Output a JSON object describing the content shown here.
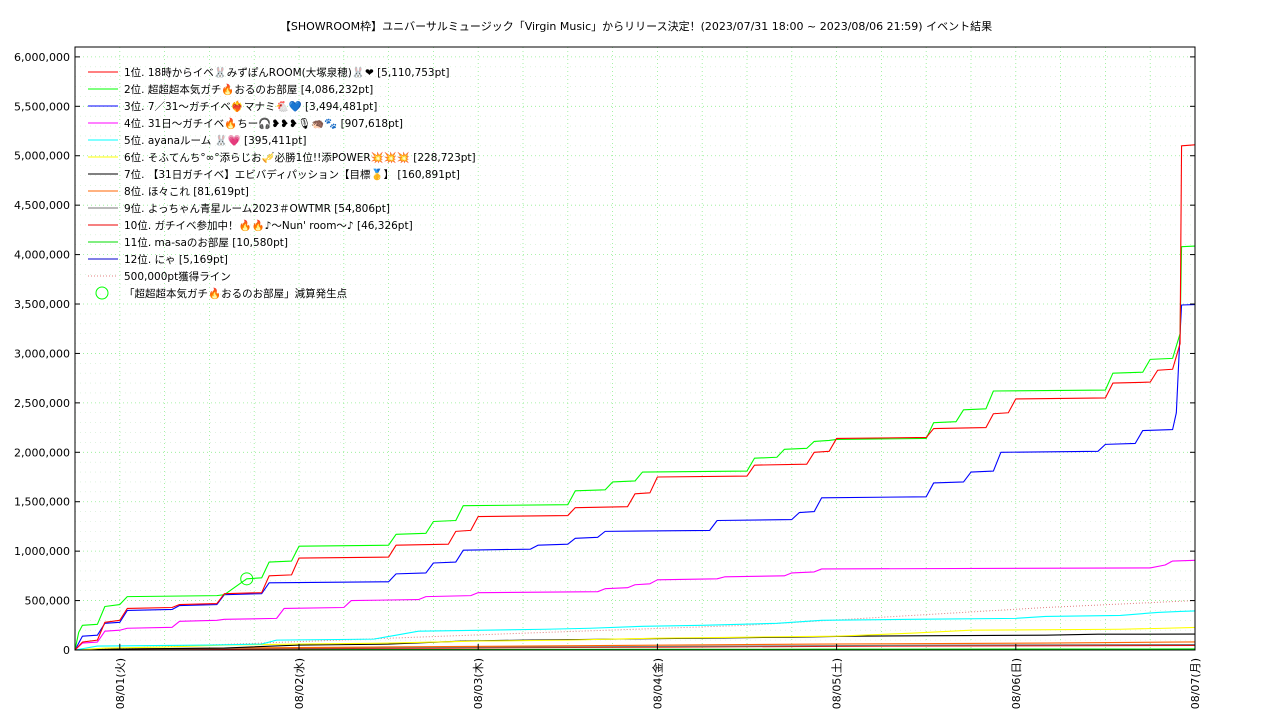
{
  "chart_data": {
    "type": "line",
    "title": "【SHOWROOM枠】ユニバーサルミュージック「Virgin Music」からリリース決定！(2023/07/31 18:00 ~ 2023/08/06 21:59)",
    "title_suffix": "イベント結果",
    "xlabel": "",
    "ylabel": "",
    "x_range_hours": [
      0,
      150
    ],
    "ylim": [
      0,
      6100000
    ],
    "grid": true,
    "legend_position": "top-left",
    "y_ticks": [
      {
        "value": 0,
        "label": "0"
      },
      {
        "value": 500000,
        "label": "500,000"
      },
      {
        "value": 1000000,
        "label": "1,000,000"
      },
      {
        "value": 1500000,
        "label": "1,500,000"
      },
      {
        "value": 2000000,
        "label": "2,000,000"
      },
      {
        "value": 2500000,
        "label": "2,500,000"
      },
      {
        "value": 3000000,
        "label": "3,000,000"
      },
      {
        "value": 3500000,
        "label": "3,500,000"
      },
      {
        "value": 4000000,
        "label": "4,000,000"
      },
      {
        "value": 4500000,
        "label": "4,500,000"
      },
      {
        "value": 5000000,
        "label": "5,000,000"
      },
      {
        "value": 5500000,
        "label": "5,500,000"
      },
      {
        "value": 6000000,
        "label": "6,000,000"
      }
    ],
    "x_ticks": [
      {
        "value": 6,
        "label": "08/01(火)"
      },
      {
        "value": 30,
        "label": "08/02(水)"
      },
      {
        "value": 54,
        "label": "08/03(木)"
      },
      {
        "value": 78,
        "label": "08/04(金)"
      },
      {
        "value": 102,
        "label": "08/05(土)"
      },
      {
        "value": 126,
        "label": "08/06(日)"
      },
      {
        "value": 150,
        "label": "08/07(月)"
      }
    ],
    "series": [
      {
        "name": "1位. 18時からイベ🐰みずぽんROOM(大塚泉穂)🐰❤ [5,110,753pt]",
        "color": "#ff0000",
        "points": [
          [
            0,
            0
          ],
          [
            1,
            80000
          ],
          [
            3,
            100000
          ],
          [
            4,
            280000
          ],
          [
            6,
            300000
          ],
          [
            7,
            420000
          ],
          [
            13,
            430000
          ],
          [
            14,
            460000
          ],
          [
            19,
            470000
          ],
          [
            20,
            570000
          ],
          [
            25,
            580000
          ],
          [
            26,
            750000
          ],
          [
            29,
            760000
          ],
          [
            30,
            930000
          ],
          [
            42,
            940000
          ],
          [
            43,
            1060000
          ],
          [
            50,
            1070000
          ],
          [
            51,
            1200000
          ],
          [
            53,
            1210000
          ],
          [
            54,
            1350000
          ],
          [
            66,
            1360000
          ],
          [
            67,
            1440000
          ],
          [
            74,
            1450000
          ],
          [
            75,
            1580000
          ],
          [
            77,
            1590000
          ],
          [
            78,
            1750000
          ],
          [
            90,
            1760000
          ],
          [
            91,
            1870000
          ],
          [
            98,
            1880000
          ],
          [
            99,
            2000000
          ],
          [
            101,
            2010000
          ],
          [
            102,
            2140000
          ],
          [
            114,
            2150000
          ],
          [
            115,
            2240000
          ],
          [
            122,
            2250000
          ],
          [
            123,
            2390000
          ],
          [
            125,
            2400000
          ],
          [
            126,
            2540000
          ],
          [
            138,
            2550000
          ],
          [
            139,
            2700000
          ],
          [
            144,
            2710000
          ],
          [
            145,
            2830000
          ],
          [
            147,
            2840000
          ],
          [
            148,
            3100000
          ],
          [
            148.2,
            5100000
          ],
          [
            150,
            5110753
          ]
        ]
      },
      {
        "name": "2位. 超超超本気ガチ🔥おるのお部屋 [4,086,232pt]",
        "color": "#00ff00",
        "points": [
          [
            0,
            0
          ],
          [
            0.5,
            180000
          ],
          [
            1,
            250000
          ],
          [
            3,
            260000
          ],
          [
            4,
            440000
          ],
          [
            6,
            460000
          ],
          [
            7,
            540000
          ],
          [
            19,
            550000
          ],
          [
            20,
            560000
          ],
          [
            23,
            720000
          ],
          [
            25,
            730000
          ],
          [
            26,
            890000
          ],
          [
            29,
            900000
          ],
          [
            30,
            1050000
          ],
          [
            42,
            1060000
          ],
          [
            43,
            1170000
          ],
          [
            47,
            1180000
          ],
          [
            48,
            1300000
          ],
          [
            51,
            1310000
          ],
          [
            52,
            1460000
          ],
          [
            66,
            1470000
          ],
          [
            67,
            1610000
          ],
          [
            71,
            1620000
          ],
          [
            72,
            1700000
          ],
          [
            75,
            1710000
          ],
          [
            76,
            1800000
          ],
          [
            90,
            1810000
          ],
          [
            91,
            1940000
          ],
          [
            94,
            1950000
          ],
          [
            95,
            2030000
          ],
          [
            98,
            2040000
          ],
          [
            99,
            2110000
          ],
          [
            101,
            2120000
          ],
          [
            102,
            2130000
          ],
          [
            114,
            2140000
          ],
          [
            115,
            2300000
          ],
          [
            118,
            2310000
          ],
          [
            119,
            2430000
          ],
          [
            122,
            2440000
          ],
          [
            123,
            2620000
          ],
          [
            138,
            2630000
          ],
          [
            139,
            2800000
          ],
          [
            143,
            2810000
          ],
          [
            144,
            2940000
          ],
          [
            147,
            2950000
          ],
          [
            148,
            3200000
          ],
          [
            148.2,
            4080000
          ],
          [
            150,
            4086232
          ]
        ]
      },
      {
        "name": "3位. 7／31〜ガチイベ❤️‍🔥マナミ🐔💙 [3,494,481pt]",
        "color": "#0000ff",
        "points": [
          [
            0,
            0
          ],
          [
            1,
            140000
          ],
          [
            3,
            150000
          ],
          [
            4,
            270000
          ],
          [
            6,
            280000
          ],
          [
            7,
            400000
          ],
          [
            13,
            410000
          ],
          [
            14,
            450000
          ],
          [
            19,
            460000
          ],
          [
            20,
            560000
          ],
          [
            25,
            570000
          ],
          [
            26,
            680000
          ],
          [
            42,
            690000
          ],
          [
            43,
            770000
          ],
          [
            47,
            780000
          ],
          [
            48,
            880000
          ],
          [
            51,
            890000
          ],
          [
            52,
            1010000
          ],
          [
            61,
            1020000
          ],
          [
            62,
            1060000
          ],
          [
            66,
            1070000
          ],
          [
            67,
            1130000
          ],
          [
            70,
            1140000
          ],
          [
            71,
            1200000
          ],
          [
            85,
            1210000
          ],
          [
            86,
            1310000
          ],
          [
            96,
            1320000
          ],
          [
            97,
            1390000
          ],
          [
            99,
            1400000
          ],
          [
            100,
            1540000
          ],
          [
            114,
            1550000
          ],
          [
            115,
            1690000
          ],
          [
            119,
            1700000
          ],
          [
            120,
            1800000
          ],
          [
            123,
            1810000
          ],
          [
            124,
            2000000
          ],
          [
            137,
            2010000
          ],
          [
            138,
            2080000
          ],
          [
            142,
            2090000
          ],
          [
            143,
            2220000
          ],
          [
            147,
            2230000
          ],
          [
            147.5,
            2400000
          ],
          [
            148,
            3200000
          ],
          [
            148.2,
            3490000
          ],
          [
            150,
            3494481
          ]
        ]
      },
      {
        "name": "4位. 31日〜ガチイベ🔥ちー🎧❥❥❥🎙🦔🐾 [907,618pt]",
        "color": "#ff00ff",
        "points": [
          [
            0,
            0
          ],
          [
            1,
            70000
          ],
          [
            3,
            80000
          ],
          [
            4,
            190000
          ],
          [
            6,
            200000
          ],
          [
            7,
            220000
          ],
          [
            13,
            230000
          ],
          [
            14,
            290000
          ],
          [
            19,
            300000
          ],
          [
            20,
            310000
          ],
          [
            27,
            320000
          ],
          [
            28,
            420000
          ],
          [
            36,
            430000
          ],
          [
            37,
            500000
          ],
          [
            46,
            510000
          ],
          [
            47,
            540000
          ],
          [
            53,
            550000
          ],
          [
            54,
            580000
          ],
          [
            70,
            590000
          ],
          [
            71,
            620000
          ],
          [
            74,
            630000
          ],
          [
            75,
            660000
          ],
          [
            77,
            670000
          ],
          [
            78,
            710000
          ],
          [
            86,
            720000
          ],
          [
            87,
            740000
          ],
          [
            95,
            750000
          ],
          [
            96,
            780000
          ],
          [
            99,
            790000
          ],
          [
            100,
            820000
          ],
          [
            144,
            830000
          ],
          [
            146,
            860000
          ],
          [
            147,
            900000
          ],
          [
            150,
            907618
          ]
        ]
      },
      {
        "name": "5位. ayanaルーム 🐰💗 [395,411pt]",
        "color": "#00ffff",
        "points": [
          [
            0,
            0
          ],
          [
            3,
            40000
          ],
          [
            18,
            50000
          ],
          [
            25,
            60000
          ],
          [
            27,
            100000
          ],
          [
            40,
            110000
          ],
          [
            43,
            150000
          ],
          [
            46,
            190000
          ],
          [
            55,
            200000
          ],
          [
            63,
            210000
          ],
          [
            69,
            220000
          ],
          [
            76,
            240000
          ],
          [
            84,
            250000
          ],
          [
            94,
            270000
          ],
          [
            100,
            300000
          ],
          [
            112,
            310000
          ],
          [
            126,
            320000
          ],
          [
            130,
            340000
          ],
          [
            140,
            350000
          ],
          [
            145,
            380000
          ],
          [
            148,
            390000
          ],
          [
            150,
            395411
          ]
        ]
      },
      {
        "name": "6位. そふてんち°∞°添らじお🎺必勝1位!!添POWER💥💥💥 [228,723pt]",
        "color": "#ffff00",
        "points": [
          [
            0,
            0
          ],
          [
            4,
            20000
          ],
          [
            12,
            30000
          ],
          [
            20,
            50000
          ],
          [
            30,
            60000
          ],
          [
            42,
            70000
          ],
          [
            54,
            90000
          ],
          [
            66,
            100000
          ],
          [
            78,
            120000
          ],
          [
            90,
            130000
          ],
          [
            102,
            140000
          ],
          [
            112,
            170000
          ],
          [
            120,
            200000
          ],
          [
            140,
            210000
          ],
          [
            146,
            220000
          ],
          [
            150,
            228723
          ]
        ]
      },
      {
        "name": "7位. 【31日ガチイベ】エビバディパッション【目標🥇】 [160,891pt]",
        "color": "#000000",
        "points": [
          [
            0,
            0
          ],
          [
            6,
            10000
          ],
          [
            20,
            20000
          ],
          [
            30,
            50000
          ],
          [
            42,
            60000
          ],
          [
            52,
            90000
          ],
          [
            60,
            100000
          ],
          [
            72,
            110000
          ],
          [
            84,
            120000
          ],
          [
            96,
            130000
          ],
          [
            104,
            140000
          ],
          [
            130,
            150000
          ],
          [
            137,
            160000
          ],
          [
            150,
            160891
          ]
        ]
      },
      {
        "name": "8位. ほ々これ [81,619pt]",
        "color": "#ff6600",
        "points": [
          [
            0,
            0
          ],
          [
            6,
            10000
          ],
          [
            20,
            20000
          ],
          [
            40,
            30000
          ],
          [
            60,
            40000
          ],
          [
            80,
            50000
          ],
          [
            100,
            60000
          ],
          [
            130,
            70000
          ],
          [
            147,
            80000
          ],
          [
            150,
            81619
          ]
        ]
      },
      {
        "name": "9位. よっちゃん青星ルーム2023＃OWTMR [54,806pt]",
        "color": "#777777",
        "points": [
          [
            0,
            0
          ],
          [
            10,
            10000
          ],
          [
            30,
            20000
          ],
          [
            60,
            30000
          ],
          [
            90,
            40000
          ],
          [
            120,
            50000
          ],
          [
            150,
            54806
          ]
        ]
      },
      {
        "name": "10位. ガチイベ参加中！🔥🔥♪〜Nun' room〜♪ [46,326pt]",
        "color": "#ee0000",
        "points": [
          [
            0,
            0
          ],
          [
            20,
            10000
          ],
          [
            50,
            20000
          ],
          [
            80,
            30000
          ],
          [
            110,
            40000
          ],
          [
            150,
            46326
          ]
        ]
      },
      {
        "name": "11位. ma-saのお部屋 [10,580pt]",
        "color": "#00dd00",
        "points": [
          [
            0,
            0
          ],
          [
            40,
            5000
          ],
          [
            100,
            8000
          ],
          [
            150,
            10580
          ]
        ]
      },
      {
        "name": "12位. にゃ [5,169pt]",
        "color": "#0000cc",
        "points": [
          [
            0,
            0
          ],
          [
            60,
            2000
          ],
          [
            120,
            4000
          ],
          [
            150,
            5169
          ]
        ]
      }
    ],
    "reference_line": {
      "name": "500,000pt獲得ライン",
      "color": "#e08080",
      "points": [
        [
          0,
          0
        ],
        [
          60,
          170000
        ],
        [
          90,
          250000
        ],
        [
          110,
          340000
        ],
        [
          130,
          430000
        ],
        [
          150,
          500000
        ]
      ]
    },
    "markers": {
      "name": "「超超超本気ガチ🔥おるのお部屋」減算発生点",
      "color": "#00ff00",
      "points": [
        [
          23,
          720000
        ]
      ]
    }
  }
}
